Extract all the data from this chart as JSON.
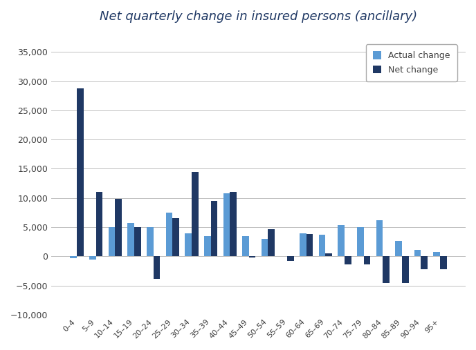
{
  "categories": [
    "0–4",
    "5–9",
    "10–14",
    "15–19",
    "20–24",
    "25–29",
    "30–34",
    "35–39",
    "40–44",
    "45–49",
    "50–54",
    "55–59",
    "60–64",
    "65–69",
    "70–74",
    "75–79",
    "80–84",
    "85–89",
    "90–94",
    "95+"
  ],
  "actual_change": [
    -300,
    -500,
    5000,
    5700,
    5000,
    7500,
    4000,
    3500,
    10800,
    3500,
    3000,
    0,
    4000,
    3700,
    5400,
    5000,
    6200,
    2700,
    1100,
    700
  ],
  "net_change": [
    28770,
    11000,
    9800,
    5000,
    -3800,
    6500,
    14500,
    9500,
    11000,
    -200,
    4700,
    -800,
    3800,
    500,
    -1400,
    -1400,
    -4600,
    -4600,
    -2200,
    -2200
  ],
  "actual_color": "#5B9BD5",
  "net_color": "#1F3864",
  "title": "Net quarterly change in insured persons (ancillary)",
  "title_color": "#1F3864",
  "legend_labels": [
    "Actual change",
    "Net change"
  ],
  "ylim": [
    -10000,
    38000
  ],
  "yticks": [
    -10000,
    -5000,
    0,
    5000,
    10000,
    15000,
    20000,
    25000,
    30000,
    35000
  ],
  "background_color": "#ffffff",
  "grid_color": "#bfbfbf",
  "title_fontsize": 13
}
